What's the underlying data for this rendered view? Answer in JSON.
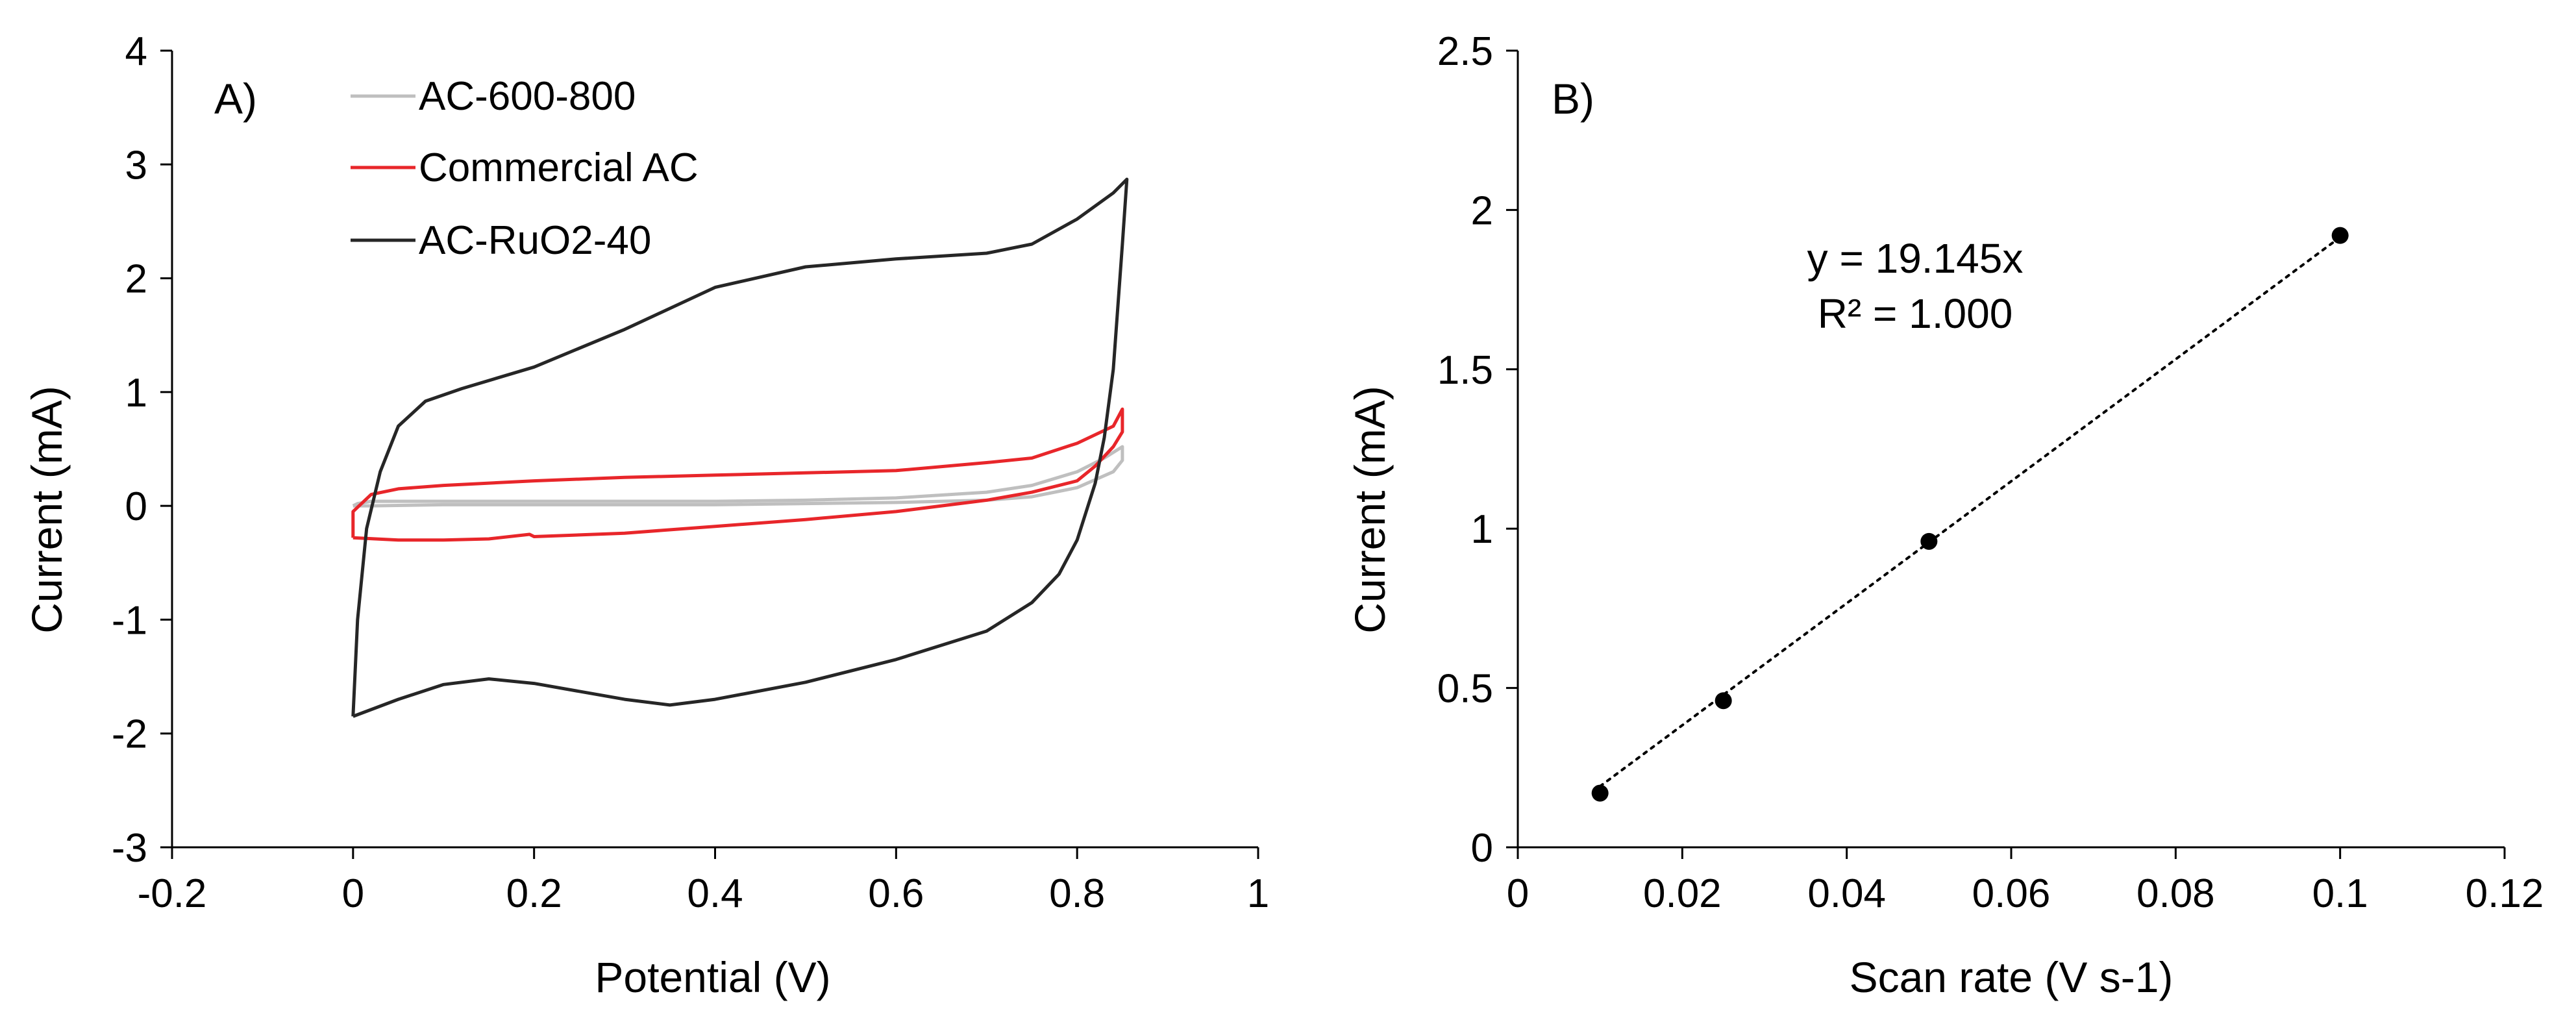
{
  "chart_data": [
    {
      "type": "line",
      "panel_label": "A)",
      "xlabel": "Potential (V)",
      "ylabel": "Current (mA)",
      "xlim": [
        -0.2,
        1
      ],
      "ylim": [
        -3,
        4
      ],
      "xticks": [
        -0.2,
        0,
        0.2,
        0.4,
        0.6,
        0.8,
        1
      ],
      "xtick_labels": [
        "-0.2",
        "0",
        "0.2",
        "0.4",
        "0.6",
        "0.8",
        "1"
      ],
      "yticks": [
        -3,
        -2,
        -1,
        0,
        1,
        2,
        3,
        4
      ],
      "ytick_labels": [
        "-3",
        "-2",
        "-1",
        "0",
        "1",
        "2",
        "3",
        "4"
      ],
      "legend_position": "top-left",
      "series": [
        {
          "name": "AC-600-800",
          "color": "#bfbfbf",
          "points": [
            [
              0.0,
              0.0
            ],
            [
              0.005,
              0.02
            ],
            [
              0.02,
              0.04
            ],
            [
              0.1,
              0.04
            ],
            [
              0.2,
              0.04
            ],
            [
              0.3,
              0.04
            ],
            [
              0.4,
              0.04
            ],
            [
              0.5,
              0.05
            ],
            [
              0.6,
              0.07
            ],
            [
              0.7,
              0.12
            ],
            [
              0.75,
              0.18
            ],
            [
              0.8,
              0.3
            ],
            [
              0.83,
              0.42
            ],
            [
              0.85,
              0.52
            ],
            [
              0.85,
              0.4
            ],
            [
              0.84,
              0.3
            ],
            [
              0.8,
              0.16
            ],
            [
              0.75,
              0.08
            ],
            [
              0.7,
              0.05
            ],
            [
              0.6,
              0.03
            ],
            [
              0.5,
              0.02
            ],
            [
              0.4,
              0.01
            ],
            [
              0.3,
              0.01
            ],
            [
              0.2,
              0.01
            ],
            [
              0.1,
              0.01
            ],
            [
              0.02,
              0.0
            ],
            [
              0.0,
              0.0
            ]
          ]
        },
        {
          "name": "Commercial AC",
          "color": "#e8262a",
          "points": [
            [
              0.0,
              -0.28
            ],
            [
              0.0,
              -0.05
            ],
            [
              0.02,
              0.1
            ],
            [
              0.05,
              0.15
            ],
            [
              0.1,
              0.18
            ],
            [
              0.2,
              0.22
            ],
            [
              0.3,
              0.25
            ],
            [
              0.4,
              0.27
            ],
            [
              0.5,
              0.29
            ],
            [
              0.6,
              0.31
            ],
            [
              0.7,
              0.38
            ],
            [
              0.75,
              0.42
            ],
            [
              0.8,
              0.55
            ],
            [
              0.84,
              0.7
            ],
            [
              0.85,
              0.85
            ],
            [
              0.85,
              0.65
            ],
            [
              0.84,
              0.52
            ],
            [
              0.82,
              0.35
            ],
            [
              0.8,
              0.22
            ],
            [
              0.75,
              0.12
            ],
            [
              0.7,
              0.05
            ],
            [
              0.6,
              -0.05
            ],
            [
              0.5,
              -0.12
            ],
            [
              0.4,
              -0.18
            ],
            [
              0.3,
              -0.24
            ],
            [
              0.2,
              -0.27
            ],
            [
              0.195,
              -0.25
            ],
            [
              0.15,
              -0.29
            ],
            [
              0.1,
              -0.3
            ],
            [
              0.05,
              -0.3
            ],
            [
              0.0,
              -0.28
            ]
          ]
        },
        {
          "name": "AC-RuO2-40",
          "color": "#262626",
          "points": [
            [
              0.0,
              -1.85
            ],
            [
              0.005,
              -1.0
            ],
            [
              0.015,
              -0.2
            ],
            [
              0.03,
              0.3
            ],
            [
              0.05,
              0.7
            ],
            [
              0.08,
              0.92
            ],
            [
              0.12,
              1.03
            ],
            [
              0.2,
              1.22
            ],
            [
              0.3,
              1.55
            ],
            [
              0.4,
              1.92
            ],
            [
              0.5,
              2.1
            ],
            [
              0.6,
              2.17
            ],
            [
              0.7,
              2.22
            ],
            [
              0.75,
              2.3
            ],
            [
              0.8,
              2.52
            ],
            [
              0.84,
              2.75
            ],
            [
              0.855,
              2.87
            ],
            [
              0.85,
              2.3
            ],
            [
              0.84,
              1.2
            ],
            [
              0.83,
              0.6
            ],
            [
              0.82,
              0.2
            ],
            [
              0.8,
              -0.3
            ],
            [
              0.78,
              -0.6
            ],
            [
              0.75,
              -0.85
            ],
            [
              0.7,
              -1.1
            ],
            [
              0.6,
              -1.35
            ],
            [
              0.5,
              -1.55
            ],
            [
              0.4,
              -1.7
            ],
            [
              0.35,
              -1.75
            ],
            [
              0.3,
              -1.7
            ],
            [
              0.2,
              -1.56
            ],
            [
              0.15,
              -1.52
            ],
            [
              0.1,
              -1.57
            ],
            [
              0.05,
              -1.7
            ],
            [
              0.0,
              -1.85
            ]
          ]
        }
      ]
    },
    {
      "type": "scatter",
      "panel_label": "B)",
      "xlabel": "Scan rate (V s-1)",
      "ylabel": "Current (mA)",
      "xlim": [
        0,
        0.12
      ],
      "ylim": [
        0,
        2.5
      ],
      "xticks": [
        0,
        0.02,
        0.04,
        0.06,
        0.08,
        0.1,
        0.12
      ],
      "xtick_labels": [
        "0",
        "0.02",
        "0.04",
        "0.06",
        "0.08",
        "0.1",
        "0.12"
      ],
      "yticks": [
        0,
        0.5,
        1,
        1.5,
        2,
        2.5
      ],
      "ytick_labels": [
        "0",
        "0.5",
        "1",
        "1.5",
        "2",
        "2.5"
      ],
      "points": [
        [
          0.01,
          0.17
        ],
        [
          0.025,
          0.46
        ],
        [
          0.05,
          0.96
        ],
        [
          0.1,
          1.92
        ]
      ],
      "trendline": {
        "slope": 19.145,
        "x_range": [
          0.01,
          0.1
        ]
      },
      "annotations": [
        "y = 19.145x",
        "R² = 1.000"
      ]
    }
  ]
}
